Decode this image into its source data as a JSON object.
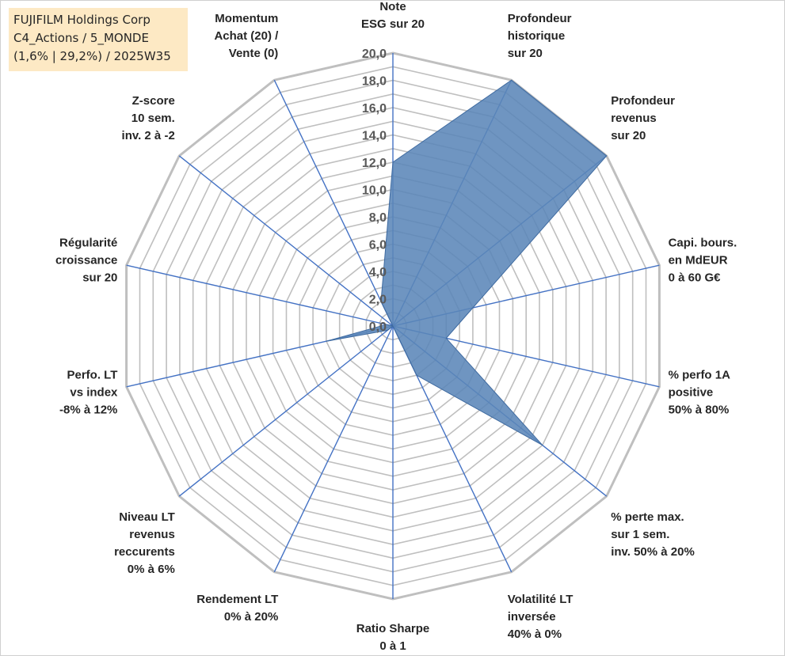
{
  "title_box": {
    "line1": "FUJIFILM Holdings Corp",
    "line2": "C4_Actions / 5_MONDE",
    "line3": "(1,6% | 29,2%) / 2025W35"
  },
  "chart_data": {
    "type": "radar",
    "rmin": 0,
    "rmax": 20,
    "step": 1,
    "tick_labels": [
      "0,0",
      "2,0",
      "4,0",
      "6,0",
      "8,0",
      "10,0",
      "12,0",
      "14,0",
      "16,0",
      "18,0",
      "20,0"
    ],
    "fill_color": "#5b86b8",
    "edge_color": "#3e6aa0",
    "axis_color": "#4472c4",
    "grid_color": "#bfbfbf",
    "categories": [
      {
        "label": [
          "Note",
          "ESG sur 20"
        ],
        "value": 12
      },
      {
        "label": [
          "Profondeur",
          "historique",
          "sur 20"
        ],
        "value": 20
      },
      {
        "label": [
          "Profondeur",
          "revenus",
          "sur 20"
        ],
        "value": 20
      },
      {
        "label": [
          "Capi. bours.",
          "en MdEUR",
          "0 à 60 G€"
        ],
        "value": 6
      },
      {
        "label": [
          "% perfo 1A",
          "positive",
          "50% à 80%"
        ],
        "value": 4
      },
      {
        "label": [
          "% perte max.",
          "sur 1 sem.",
          "inv. 50% à 20%"
        ],
        "value": 14
      },
      {
        "label": [
          "Volatilité LT",
          "inversée",
          "40% à 0%"
        ],
        "value": 4
      },
      {
        "label": [
          "Ratio Sharpe",
          "0 à 1"
        ],
        "value": 0
      },
      {
        "label": [
          "Rendement LT",
          "0% à 20%"
        ],
        "value": 0
      },
      {
        "label": [
          "Niveau LT",
          "revenus",
          "reccurents",
          "0% à 6%"
        ],
        "value": 0.5
      },
      {
        "label": [
          "Perfo. LT",
          "vs index",
          "-8% à 12%"
        ],
        "value": 5
      },
      {
        "label": [
          "Régularité",
          "croissance",
          "sur 20"
        ],
        "value": 0.5
      },
      {
        "label": [
          "Z-score",
          "10 sem.",
          "inv. 2 à -2"
        ],
        "value": 0
      },
      {
        "label": [
          "Momentum",
          "Achat (20) /",
          "Vente (0)"
        ],
        "value": 2
      }
    ]
  }
}
